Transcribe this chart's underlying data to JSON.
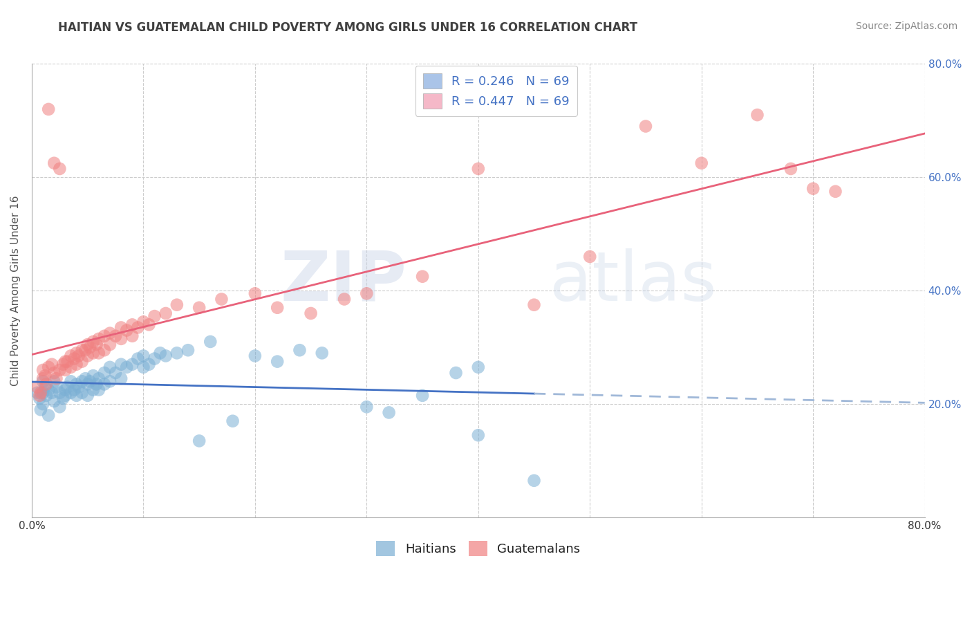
{
  "title": "HAITIAN VS GUATEMALAN CHILD POVERTY AMONG GIRLS UNDER 16 CORRELATION CHART",
  "source": "Source: ZipAtlas.com",
  "ylabel": "Child Poverty Among Girls Under 16",
  "xlabel": "",
  "watermark_zip": "ZIP",
  "watermark_atlas": "atlas",
  "xlim": [
    0.0,
    0.8
  ],
  "ylim": [
    0.0,
    0.8
  ],
  "haitian_color": "#7bafd4",
  "guatemalan_color": "#f08080",
  "haitian_line_color": "#4472c4",
  "guatemalan_line_color": "#e8627a",
  "haitian_dash_color": "#a0b8d8",
  "background_color": "#ffffff",
  "grid_color": "#cccccc",
  "title_color": "#404040",
  "legend_text_color": "#4472c4",
  "legend_label_color": "#222222",
  "haitian_legend_color": "#aac4e8",
  "guatemalan_legend_color": "#f5b8c8",
  "haitian_points": [
    [
      0.005,
      0.22
    ],
    [
      0.007,
      0.21
    ],
    [
      0.008,
      0.19
    ],
    [
      0.01,
      0.24
    ],
    [
      0.01,
      0.22
    ],
    [
      0.01,
      0.2
    ],
    [
      0.012,
      0.23
    ],
    [
      0.013,
      0.215
    ],
    [
      0.015,
      0.225
    ],
    [
      0.015,
      0.18
    ],
    [
      0.018,
      0.22
    ],
    [
      0.02,
      0.24
    ],
    [
      0.02,
      0.205
    ],
    [
      0.022,
      0.23
    ],
    [
      0.025,
      0.22
    ],
    [
      0.025,
      0.195
    ],
    [
      0.028,
      0.21
    ],
    [
      0.03,
      0.225
    ],
    [
      0.03,
      0.215
    ],
    [
      0.032,
      0.23
    ],
    [
      0.035,
      0.22
    ],
    [
      0.035,
      0.24
    ],
    [
      0.038,
      0.225
    ],
    [
      0.04,
      0.235
    ],
    [
      0.04,
      0.215
    ],
    [
      0.042,
      0.23
    ],
    [
      0.045,
      0.24
    ],
    [
      0.045,
      0.22
    ],
    [
      0.048,
      0.245
    ],
    [
      0.05,
      0.235
    ],
    [
      0.05,
      0.215
    ],
    [
      0.052,
      0.24
    ],
    [
      0.055,
      0.25
    ],
    [
      0.055,
      0.225
    ],
    [
      0.058,
      0.235
    ],
    [
      0.06,
      0.245
    ],
    [
      0.06,
      0.225
    ],
    [
      0.065,
      0.255
    ],
    [
      0.065,
      0.235
    ],
    [
      0.07,
      0.265
    ],
    [
      0.07,
      0.24
    ],
    [
      0.075,
      0.255
    ],
    [
      0.08,
      0.27
    ],
    [
      0.08,
      0.245
    ],
    [
      0.085,
      0.265
    ],
    [
      0.09,
      0.27
    ],
    [
      0.095,
      0.28
    ],
    [
      0.1,
      0.285
    ],
    [
      0.1,
      0.265
    ],
    [
      0.105,
      0.27
    ],
    [
      0.11,
      0.28
    ],
    [
      0.115,
      0.29
    ],
    [
      0.12,
      0.285
    ],
    [
      0.13,
      0.29
    ],
    [
      0.14,
      0.295
    ],
    [
      0.15,
      0.135
    ],
    [
      0.16,
      0.31
    ],
    [
      0.18,
      0.17
    ],
    [
      0.2,
      0.285
    ],
    [
      0.22,
      0.275
    ],
    [
      0.24,
      0.295
    ],
    [
      0.26,
      0.29
    ],
    [
      0.3,
      0.195
    ],
    [
      0.32,
      0.185
    ],
    [
      0.35,
      0.215
    ],
    [
      0.38,
      0.255
    ],
    [
      0.4,
      0.145
    ],
    [
      0.4,
      0.265
    ],
    [
      0.45,
      0.065
    ]
  ],
  "guatemalan_points": [
    [
      0.005,
      0.23
    ],
    [
      0.007,
      0.215
    ],
    [
      0.008,
      0.22
    ],
    [
      0.01,
      0.26
    ],
    [
      0.01,
      0.245
    ],
    [
      0.012,
      0.25
    ],
    [
      0.013,
      0.235
    ],
    [
      0.015,
      0.265
    ],
    [
      0.015,
      0.72
    ],
    [
      0.018,
      0.27
    ],
    [
      0.02,
      0.255
    ],
    [
      0.02,
      0.625
    ],
    [
      0.022,
      0.245
    ],
    [
      0.025,
      0.26
    ],
    [
      0.025,
      0.615
    ],
    [
      0.028,
      0.27
    ],
    [
      0.03,
      0.275
    ],
    [
      0.03,
      0.26
    ],
    [
      0.032,
      0.275
    ],
    [
      0.035,
      0.285
    ],
    [
      0.035,
      0.265
    ],
    [
      0.038,
      0.28
    ],
    [
      0.04,
      0.29
    ],
    [
      0.04,
      0.27
    ],
    [
      0.042,
      0.285
    ],
    [
      0.045,
      0.295
    ],
    [
      0.045,
      0.275
    ],
    [
      0.048,
      0.295
    ],
    [
      0.05,
      0.305
    ],
    [
      0.05,
      0.285
    ],
    [
      0.052,
      0.3
    ],
    [
      0.055,
      0.31
    ],
    [
      0.055,
      0.29
    ],
    [
      0.058,
      0.305
    ],
    [
      0.06,
      0.315
    ],
    [
      0.06,
      0.29
    ],
    [
      0.065,
      0.32
    ],
    [
      0.065,
      0.295
    ],
    [
      0.07,
      0.325
    ],
    [
      0.07,
      0.305
    ],
    [
      0.075,
      0.32
    ],
    [
      0.08,
      0.335
    ],
    [
      0.08,
      0.315
    ],
    [
      0.085,
      0.33
    ],
    [
      0.09,
      0.34
    ],
    [
      0.09,
      0.32
    ],
    [
      0.095,
      0.335
    ],
    [
      0.1,
      0.345
    ],
    [
      0.105,
      0.34
    ],
    [
      0.11,
      0.355
    ],
    [
      0.12,
      0.36
    ],
    [
      0.13,
      0.375
    ],
    [
      0.15,
      0.37
    ],
    [
      0.17,
      0.385
    ],
    [
      0.2,
      0.395
    ],
    [
      0.22,
      0.37
    ],
    [
      0.25,
      0.36
    ],
    [
      0.28,
      0.385
    ],
    [
      0.3,
      0.395
    ],
    [
      0.35,
      0.425
    ],
    [
      0.4,
      0.615
    ],
    [
      0.45,
      0.375
    ],
    [
      0.5,
      0.46
    ],
    [
      0.55,
      0.69
    ],
    [
      0.6,
      0.625
    ],
    [
      0.65,
      0.71
    ],
    [
      0.68,
      0.615
    ],
    [
      0.7,
      0.58
    ],
    [
      0.72,
      0.575
    ]
  ]
}
